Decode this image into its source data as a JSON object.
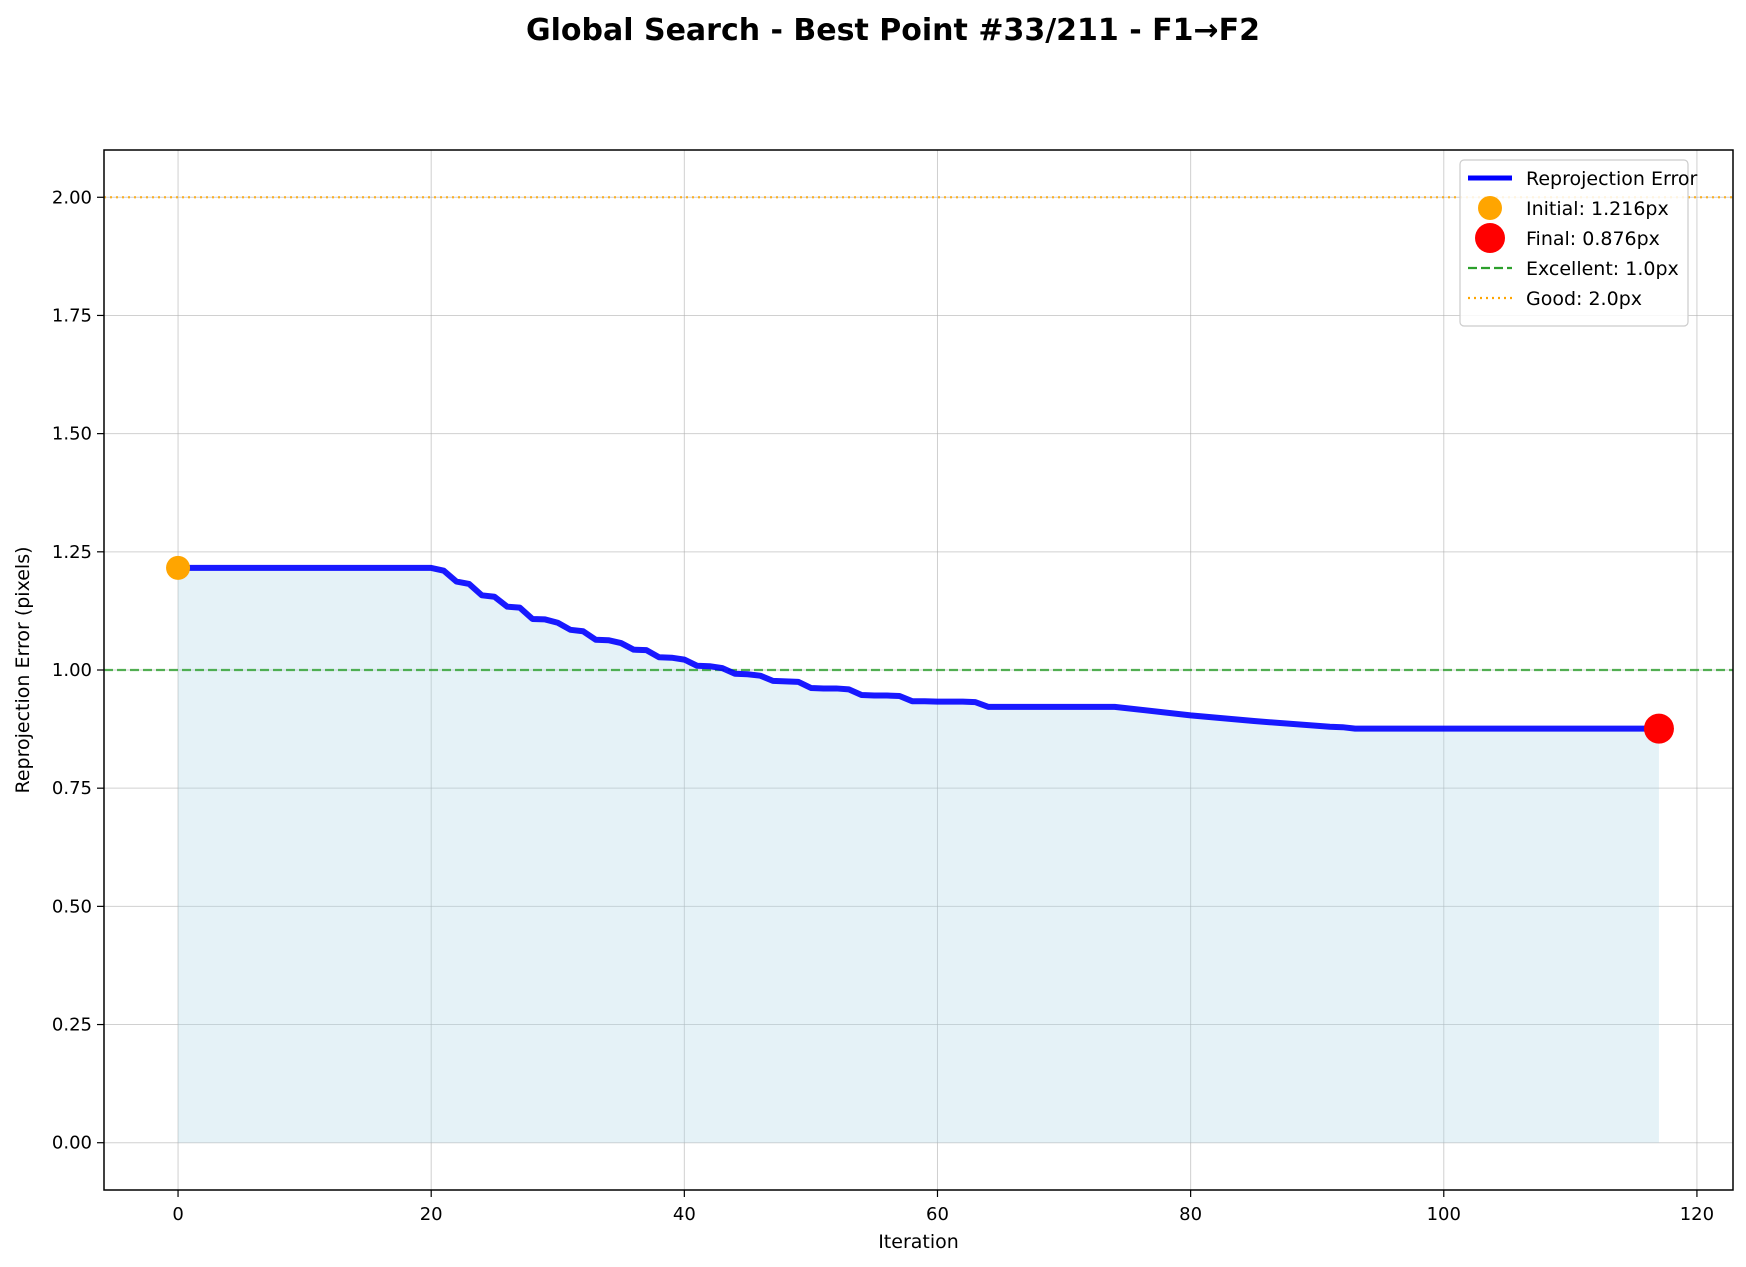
{
  "chart_data": {
    "type": "line",
    "title": "Global Search - Best Point #33/211 - F1→F2",
    "xlabel": "Iteration",
    "ylabel": "Reprojection Error (pixels)",
    "xlim": [
      -5.85,
      122.85
    ],
    "ylim": [
      -0.1,
      2.1
    ],
    "xticks": [
      0,
      20,
      40,
      60,
      80,
      100,
      120
    ],
    "yticks": [
      0.0,
      0.25,
      0.5,
      0.75,
      1.0,
      1.25,
      1.5,
      1.75,
      2.0
    ],
    "grid": true,
    "legend_position": "top-right",
    "series": [
      {
        "name": "Reprojection Error",
        "color": "#0000ff",
        "fill_color": "#add8e6",
        "x": [
          0,
          20,
          21,
          22,
          23,
          24,
          25,
          26,
          27,
          28,
          29,
          30,
          31,
          32,
          33,
          34,
          35,
          36,
          37,
          38,
          39,
          40,
          41,
          42,
          43,
          44,
          45,
          46,
          47,
          48,
          49,
          50,
          51,
          52,
          53,
          54,
          55,
          56,
          57,
          58,
          59,
          60,
          61,
          62,
          63,
          64,
          74,
          80,
          85,
          91,
          92,
          93,
          117
        ],
        "y": [
          1.216,
          1.216,
          1.21,
          1.187,
          1.182,
          1.158,
          1.155,
          1.134,
          1.132,
          1.108,
          1.107,
          1.1,
          1.085,
          1.082,
          1.064,
          1.063,
          1.057,
          1.043,
          1.042,
          1.027,
          1.026,
          1.022,
          1.009,
          1.008,
          1.004,
          0.992,
          0.991,
          0.988,
          0.977,
          0.976,
          0.975,
          0.962,
          0.961,
          0.961,
          0.959,
          0.947,
          0.946,
          0.946,
          0.945,
          0.934,
          0.934,
          0.933,
          0.933,
          0.933,
          0.932,
          0.922,
          0.922,
          0.904,
          0.892,
          0.88,
          0.879,
          0.876,
          0.876
        ]
      }
    ],
    "markers": [
      {
        "name": "Initial: 1.216px",
        "x": 0,
        "y": 1.216,
        "color": "#ffa500",
        "size": "medium"
      },
      {
        "name": "Final: 0.876px",
        "x": 117,
        "y": 0.876,
        "color": "#ff0000",
        "size": "large"
      }
    ],
    "reference_lines": [
      {
        "name": "Excellent: 1.0px",
        "y": 1.0,
        "color": "#2ca02c",
        "style": "dashed"
      },
      {
        "name": "Good: 2.0px",
        "y": 2.0,
        "color": "#ffa500",
        "style": "dotted"
      }
    ]
  }
}
